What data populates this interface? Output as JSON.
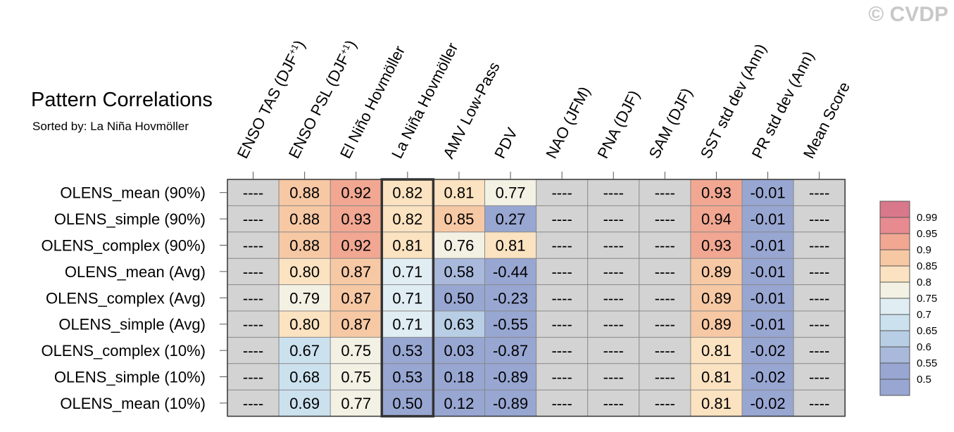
{
  "title": "Pattern Correlations",
  "subtitle": "Sorted by: La Niña Hovmöller",
  "credit": "© CVDP",
  "chart_data": {
    "type": "heatmap",
    "columns": [
      "ENSO TAS (DJF+1)",
      "ENSO PSL (DJF+1)",
      "El Niño Hovmöller",
      "La Niña Hovmöller",
      "AMV Low-Pass",
      "PDV",
      "NAO (JFM)",
      "PNA (DJF)",
      "SAM (DJF)",
      "SST std dev (Ann)",
      "PR std dev (Ann)",
      "Mean Score"
    ],
    "rows": [
      "OLENS_mean (90%)",
      "OLENS_simple (90%)",
      "OLENS_complex (90%)",
      "OLENS_mean (Avg)",
      "OLENS_complex (Avg)",
      "OLENS_simple (Avg)",
      "OLENS_complex (10%)",
      "OLENS_simple (10%)",
      "OLENS_mean (10%)"
    ],
    "values": [
      [
        null,
        0.88,
        0.92,
        0.82,
        0.81,
        0.77,
        null,
        null,
        null,
        0.93,
        -0.01,
        null
      ],
      [
        null,
        0.88,
        0.93,
        0.82,
        0.85,
        0.27,
        null,
        null,
        null,
        0.94,
        -0.01,
        null
      ],
      [
        null,
        0.88,
        0.92,
        0.81,
        0.76,
        0.81,
        null,
        null,
        null,
        0.93,
        -0.01,
        null
      ],
      [
        null,
        0.8,
        0.87,
        0.71,
        0.58,
        -0.44,
        null,
        null,
        null,
        0.89,
        -0.01,
        null
      ],
      [
        null,
        0.79,
        0.87,
        0.71,
        0.5,
        -0.23,
        null,
        null,
        null,
        0.89,
        -0.01,
        null
      ],
      [
        null,
        0.8,
        0.87,
        0.71,
        0.63,
        -0.55,
        null,
        null,
        null,
        0.89,
        -0.01,
        null
      ],
      [
        null,
        0.67,
        0.75,
        0.53,
        0.03,
        -0.87,
        null,
        null,
        null,
        0.81,
        -0.02,
        null
      ],
      [
        null,
        0.68,
        0.75,
        0.53,
        0.18,
        -0.89,
        null,
        null,
        null,
        0.81,
        -0.02,
        null
      ],
      [
        null,
        0.69,
        0.77,
        0.5,
        0.12,
        -0.89,
        null,
        null,
        null,
        0.81,
        -0.02,
        null
      ]
    ],
    "missing_label": "----",
    "highlighted_column": "La Niña Hovmöller",
    "colorbar_ticks": [
      "0.99",
      "0.95",
      "0.9",
      "0.85",
      "0.8",
      "0.75",
      "0.7",
      "0.65",
      "0.6",
      "0.55",
      "0.5"
    ],
    "colorbar_colors": [
      "#d9788a",
      "#e78b90",
      "#f1a792",
      "#f7c8a4",
      "#fbe2c0",
      "#f3f1e4",
      "#e0edf3",
      "#cce1ee",
      "#b8cee4",
      "#a8b9db",
      "#98a6d2"
    ],
    "missing_color": "#d3d3d3",
    "legend_position": "right"
  }
}
